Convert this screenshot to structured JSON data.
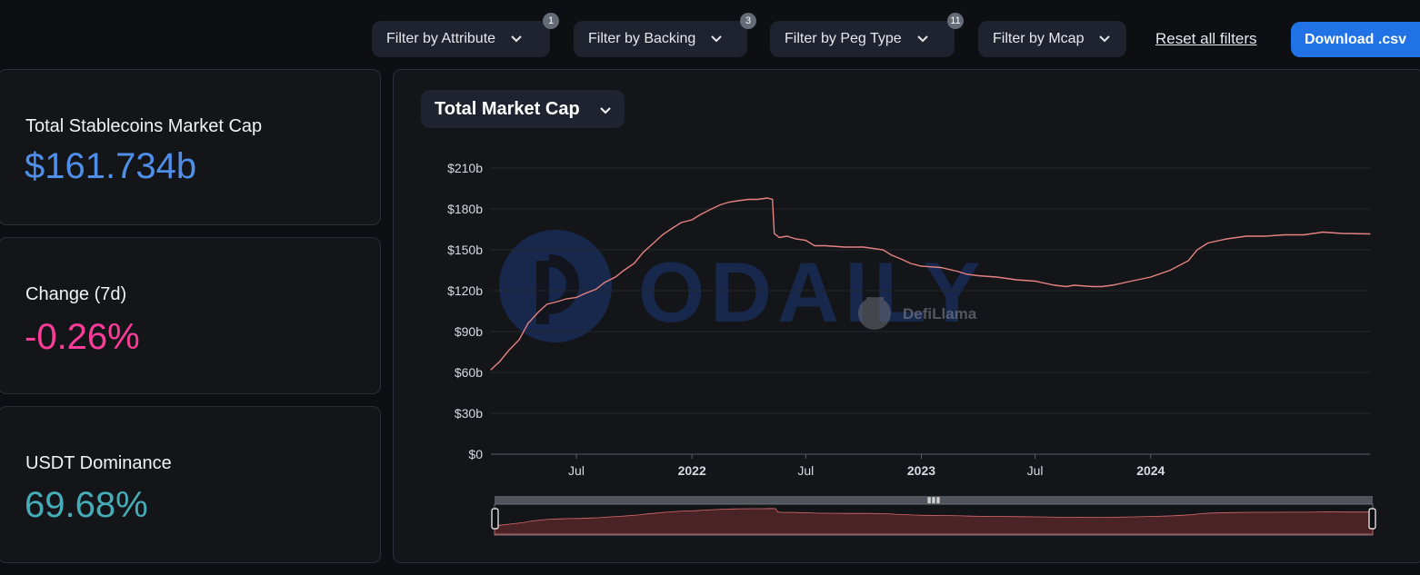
{
  "filters": [
    {
      "label": "Filter by Attribute",
      "badge": "1"
    },
    {
      "label": "Filter by Backing",
      "badge": "3"
    },
    {
      "label": "Filter by Peg Type",
      "badge": "11"
    },
    {
      "label": "Filter by Mcap",
      "badge": ""
    }
  ],
  "reset_label": "Reset all filters",
  "download_label": "Download .csv",
  "stats": {
    "total": {
      "label": "Total Stablecoins Market Cap",
      "value": "$161.734b",
      "color": "#4f8fea"
    },
    "change": {
      "label": "Change (7d)",
      "value": "-0.26%",
      "color": "#fd3c99"
    },
    "dominance": {
      "label": "USDT Dominance",
      "value": "69.68%",
      "color": "#46acb7"
    }
  },
  "selector_label": "Total Market Cap",
  "watermarks": {
    "odaily": "ODAILY",
    "defillama": "DefiLlama"
  },
  "colors": {
    "line": "#e58282",
    "accent": "#2172e5",
    "background": "#0e0f12",
    "panel": "#141519"
  },
  "icons": [
    "chevron-down-icon",
    "llama-logo-icon",
    "odaily-logo-icon"
  ],
  "chart_data": {
    "type": "area",
    "title": "",
    "xlabel": "",
    "ylabel": "",
    "ylim": [
      0,
      210
    ],
    "yticks": [
      {
        "value": 0,
        "label": "$0"
      },
      {
        "value": 30,
        "label": "$30b"
      },
      {
        "value": 60,
        "label": "$60b"
      },
      {
        "value": 90,
        "label": "$90b"
      },
      {
        "value": 120,
        "label": "$120b"
      },
      {
        "value": 150,
        "label": "$150b"
      },
      {
        "value": 180,
        "label": "$180b"
      },
      {
        "value": 210,
        "label": "$210b"
      }
    ],
    "xrange": [
      "2021-02-15",
      "2024-12-15"
    ],
    "xticks": [
      {
        "date": "2021-07-01",
        "label": "Jul",
        "bold": false
      },
      {
        "date": "2022-01-01",
        "label": "2022",
        "bold": true
      },
      {
        "date": "2022-07-01",
        "label": "Jul",
        "bold": false
      },
      {
        "date": "2023-01-01",
        "label": "2023",
        "bold": true
      },
      {
        "date": "2023-07-01",
        "label": "Jul",
        "bold": false
      },
      {
        "date": "2024-01-01",
        "label": "2024",
        "bold": true
      }
    ],
    "grid": true,
    "legend": "none",
    "series": [
      {
        "unit": "$b",
        "points": [
          [
            "2021-02-15",
            62
          ],
          [
            "2021-03-01",
            68
          ],
          [
            "2021-03-15",
            76
          ],
          [
            "2021-04-01",
            84
          ],
          [
            "2021-04-15",
            96
          ],
          [
            "2021-05-01",
            104
          ],
          [
            "2021-05-15",
            110
          ],
          [
            "2021-06-01",
            112
          ],
          [
            "2021-06-15",
            114
          ],
          [
            "2021-07-01",
            115
          ],
          [
            "2021-07-15",
            118
          ],
          [
            "2021-08-01",
            121
          ],
          [
            "2021-08-15",
            126
          ],
          [
            "2021-09-01",
            130
          ],
          [
            "2021-09-15",
            135
          ],
          [
            "2021-10-01",
            140
          ],
          [
            "2021-10-15",
            148
          ],
          [
            "2021-11-01",
            155
          ],
          [
            "2021-11-15",
            161
          ],
          [
            "2021-12-01",
            166
          ],
          [
            "2021-12-15",
            170
          ],
          [
            "2022-01-01",
            172
          ],
          [
            "2022-01-15",
            176
          ],
          [
            "2022-02-01",
            180
          ],
          [
            "2022-02-15",
            183
          ],
          [
            "2022-03-01",
            185
          ],
          [
            "2022-03-15",
            186
          ],
          [
            "2022-04-01",
            187
          ],
          [
            "2022-04-15",
            187
          ],
          [
            "2022-05-01",
            188
          ],
          [
            "2022-05-09",
            187
          ],
          [
            "2022-05-12",
            162
          ],
          [
            "2022-05-20",
            159
          ],
          [
            "2022-06-01",
            160
          ],
          [
            "2022-06-15",
            158
          ],
          [
            "2022-07-01",
            157
          ],
          [
            "2022-07-15",
            153
          ],
          [
            "2022-08-01",
            153
          ],
          [
            "2022-09-01",
            152
          ],
          [
            "2022-10-01",
            152
          ],
          [
            "2022-11-01",
            150
          ],
          [
            "2022-11-15",
            146
          ],
          [
            "2022-12-01",
            143
          ],
          [
            "2022-12-15",
            140
          ],
          [
            "2023-01-01",
            138
          ],
          [
            "2023-02-01",
            137
          ],
          [
            "2023-03-01",
            134
          ],
          [
            "2023-03-15",
            132
          ],
          [
            "2023-04-01",
            131
          ],
          [
            "2023-05-01",
            130
          ],
          [
            "2023-06-01",
            128
          ],
          [
            "2023-07-01",
            127
          ],
          [
            "2023-08-01",
            124
          ],
          [
            "2023-08-20",
            123
          ],
          [
            "2023-09-01",
            124
          ],
          [
            "2023-10-01",
            123
          ],
          [
            "2023-10-15",
            123
          ],
          [
            "2023-11-01",
            124
          ],
          [
            "2023-12-01",
            127
          ],
          [
            "2024-01-01",
            130
          ],
          [
            "2024-02-01",
            135
          ],
          [
            "2024-03-01",
            142
          ],
          [
            "2024-03-15",
            150
          ],
          [
            "2024-04-01",
            155
          ],
          [
            "2024-05-01",
            158
          ],
          [
            "2024-06-01",
            160
          ],
          [
            "2024-07-01",
            160
          ],
          [
            "2024-08-01",
            161
          ],
          [
            "2024-09-01",
            161
          ],
          [
            "2024-10-01",
            163
          ],
          [
            "2024-11-01",
            162
          ],
          [
            "2024-12-15",
            161.7
          ]
        ]
      }
    ]
  }
}
